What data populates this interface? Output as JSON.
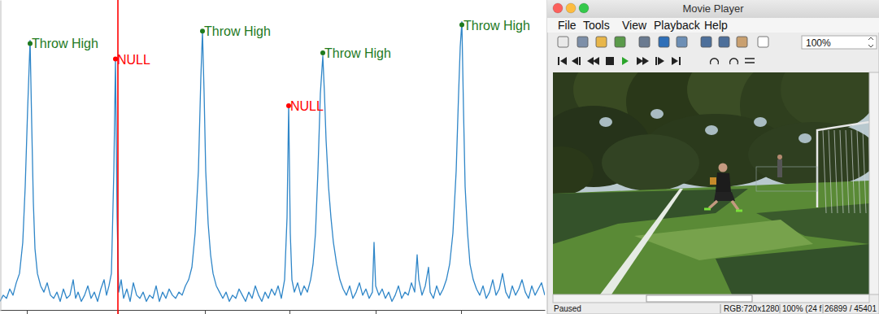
{
  "chart_data": {
    "type": "line",
    "color": "#2f86c8",
    "grid": false,
    "tick_labels": false,
    "xlim": [
      0,
      670
    ],
    "ylim": [
      0,
      100
    ],
    "xticks": [
      33,
      145,
      252,
      356,
      462,
      567
    ],
    "yticks": [],
    "x": [
      0,
      4,
      8,
      12,
      16,
      20,
      24,
      28,
      31,
      34,
      37,
      39,
      41,
      43,
      46,
      50,
      54,
      58,
      62,
      66,
      70,
      74,
      78,
      82,
      86,
      90,
      93,
      96,
      100,
      104,
      108,
      112,
      116,
      120,
      124,
      128,
      131,
      134,
      137,
      140,
      142,
      144,
      146,
      149,
      152,
      156,
      160,
      164,
      168,
      172,
      176,
      180,
      184,
      188,
      192,
      196,
      200,
      204,
      208,
      212,
      216,
      220,
      224,
      228,
      232,
      236,
      240,
      244,
      247,
      249,
      251,
      253,
      256,
      259,
      262,
      266,
      270,
      274,
      278,
      282,
      286,
      290,
      294,
      298,
      302,
      306,
      310,
      314,
      318,
      322,
      326,
      330,
      334,
      338,
      342,
      346,
      350,
      353,
      355,
      357,
      359,
      362,
      366,
      370,
      374,
      378,
      382,
      385,
      388,
      391,
      394,
      397,
      399,
      401,
      404,
      407,
      410,
      414,
      418,
      422,
      426,
      430,
      434,
      438,
      442,
      446,
      450,
      454,
      458,
      460,
      462,
      466,
      470,
      474,
      478,
      482,
      486,
      490,
      494,
      498,
      502,
      506,
      510,
      513,
      515,
      519,
      523,
      527,
      529,
      533,
      537,
      541,
      545,
      549,
      553,
      557,
      561,
      564,
      566,
      568,
      570,
      572,
      575,
      578,
      582,
      586,
      590,
      594,
      598,
      602,
      606,
      610,
      614,
      618,
      622,
      626,
      630,
      634,
      638,
      642,
      646,
      650,
      654,
      658,
      662,
      666,
      670
    ],
    "values": [
      3,
      5,
      4,
      7,
      5,
      9,
      12,
      22,
      40,
      65,
      87,
      60,
      35,
      20,
      12,
      8,
      6,
      9,
      5,
      4,
      6,
      3,
      7,
      4,
      5,
      10,
      4,
      6,
      3,
      5,
      8,
      4,
      6,
      3,
      7,
      10,
      5,
      8,
      12,
      45,
      81,
      30,
      6,
      10,
      4,
      7,
      3,
      9,
      5,
      4,
      6,
      3,
      5,
      4,
      8,
      3,
      6,
      4,
      7,
      5,
      4,
      6,
      5,
      8,
      10,
      14,
      25,
      45,
      75,
      90,
      70,
      45,
      28,
      18,
      12,
      8,
      6,
      4,
      6,
      3,
      5,
      4,
      7,
      5,
      3,
      6,
      4,
      8,
      5,
      3,
      6,
      4,
      7,
      5,
      8,
      4,
      10,
      30,
      66,
      25,
      10,
      6,
      9,
      5,
      8,
      6,
      10,
      15,
      25,
      45,
      70,
      82,
      70,
      55,
      40,
      30,
      22,
      15,
      10,
      7,
      5,
      8,
      4,
      6,
      9,
      5,
      7,
      4,
      6,
      22,
      8,
      5,
      7,
      4,
      6,
      3,
      5,
      8,
      4,
      6,
      5,
      9,
      6,
      18,
      10,
      5,
      8,
      14,
      6,
      4,
      8,
      5,
      7,
      10,
      15,
      25,
      45,
      70,
      85,
      93,
      65,
      40,
      25,
      15,
      10,
      7,
      5,
      8,
      4,
      6,
      10,
      5,
      7,
      12,
      6,
      4,
      8,
      5,
      7,
      10,
      6,
      4,
      8,
      5,
      7,
      9,
      5
    ],
    "annotations": [
      {
        "text": "Throw High",
        "x": 37,
        "y": 86,
        "color": "#1e7a1e"
      },
      {
        "text": "NULL",
        "x": 142,
        "y": 81,
        "color": "#ff0000"
      },
      {
        "text": "Throw High",
        "x": 249,
        "y": 90,
        "color": "#1e7a1e"
      },
      {
        "text": "NULL",
        "x": 355,
        "y": 66,
        "color": "#ff0000"
      },
      {
        "text": "Throw High",
        "x": 397,
        "y": 83,
        "color": "#1e7a1e"
      },
      {
        "text": "Throw High",
        "x": 568,
        "y": 92,
        "color": "#1e7a1e"
      }
    ],
    "cursor": {
      "x": 145,
      "color": "#ff0000"
    }
  },
  "movie_player": {
    "title": "Movie Player",
    "menu": [
      "File",
      "Tools",
      "View",
      "Playback",
      "Help"
    ],
    "zoom": "100%",
    "status": [
      "Paused",
      "RGB:720x1280",
      "100% (24 f",
      "26899 / 45401"
    ]
  }
}
